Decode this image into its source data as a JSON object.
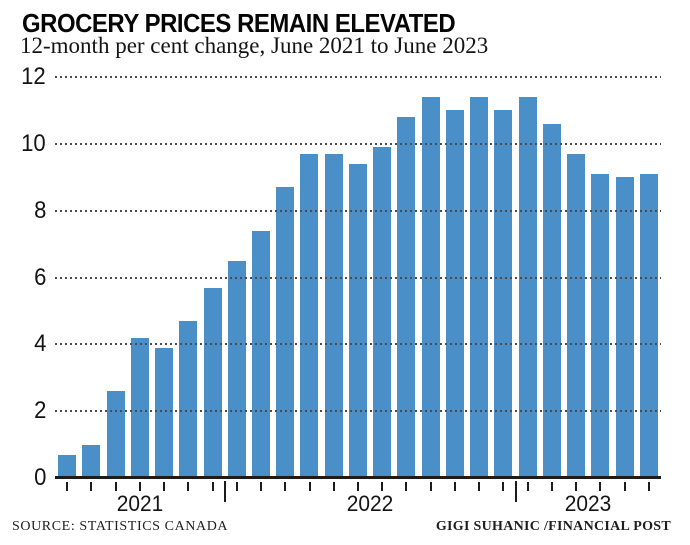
{
  "header": {
    "title": "GROCERY PRICES REMAIN ELEVATED",
    "subtitle": "12-month per cent change, June 2021 to June 2023"
  },
  "footer": {
    "source": "SOURCE: STATISTICS CANADA",
    "credit": "GIGI SUHANIC /FINANCIAL POST"
  },
  "chart_data": {
    "type": "bar",
    "title": "GROCERY PRICES REMAIN ELEVATED",
    "subtitle": "12-month per cent change, June 2021 to June 2023",
    "categories": [
      "Jun 2021",
      "Jul 2021",
      "Aug 2021",
      "Sep 2021",
      "Oct 2021",
      "Nov 2021",
      "Dec 2021",
      "Jan 2022",
      "Feb 2022",
      "Mar 2022",
      "Apr 2022",
      "May 2022",
      "Jun 2022",
      "Jul 2022",
      "Aug 2022",
      "Sep 2022",
      "Oct 2022",
      "Nov 2022",
      "Dec 2022",
      "Jan 2023",
      "Feb 2023",
      "Mar 2023",
      "Apr 2023",
      "May 2023",
      "Jun 2023"
    ],
    "values": [
      0.7,
      1.0,
      2.6,
      4.2,
      3.9,
      4.7,
      5.7,
      6.5,
      7.4,
      8.7,
      9.7,
      9.7,
      9.4,
      9.9,
      10.8,
      11.4,
      11.0,
      11.4,
      11.0,
      11.4,
      10.6,
      9.7,
      9.1,
      9.0,
      9.1
    ],
    "xlabel": "",
    "ylabel": "",
    "ylim": [
      0,
      12
    ],
    "yticks": [
      0,
      2,
      4,
      6,
      8,
      10,
      12
    ],
    "x_year_labels": [
      {
        "label": "2021",
        "from_index": 0,
        "to_index": 6
      },
      {
        "label": "2022",
        "from_index": 7,
        "to_index": 18
      },
      {
        "label": "2023",
        "from_index": 19,
        "to_index": 24
      }
    ],
    "grid": "horizontal dotted, drawn over bars",
    "legend": "none",
    "bar_color": "#4a8fc7",
    "axis_color": "#1c1c1c"
  }
}
